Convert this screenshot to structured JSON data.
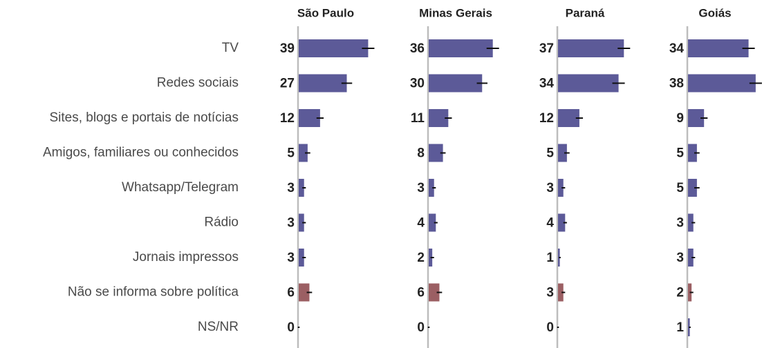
{
  "chart_data": {
    "type": "bar",
    "orientation": "horizontal",
    "categories": [
      "TV",
      "Redes sociais",
      "Sites, blogs e portais de notícias",
      "Amigos, familiares ou conhecidos",
      "Whatsapp/Telegram",
      "Rádio",
      "Jornais impressos",
      "Não se informa sobre política",
      "NS/NR"
    ],
    "colors": [
      "#5c5a98",
      "#5c5a98",
      "#5c5a98",
      "#5c5a98",
      "#5c5a98",
      "#5c5a98",
      "#5c5a98",
      "#9b5f63",
      "#5c5a98"
    ],
    "xlim": [
      0,
      40
    ],
    "series": [
      {
        "name": "São Paulo",
        "values": [
          39,
          27,
          12,
          5,
          3,
          3,
          3,
          6,
          0
        ],
        "errors": [
          3.5,
          3,
          2,
          1.5,
          1,
          1,
          1,
          1.5,
          0.5
        ]
      },
      {
        "name": "Minas Gerais",
        "values": [
          36,
          30,
          11,
          8,
          3,
          4,
          2,
          6,
          0
        ],
        "errors": [
          3.5,
          3,
          2,
          1.5,
          1,
          1,
          1,
          1.5,
          0.5
        ]
      },
      {
        "name": "Paraná",
        "values": [
          37,
          34,
          12,
          5,
          3,
          4,
          1,
          3,
          0
        ],
        "errors": [
          3.5,
          3.5,
          2,
          1.5,
          1,
          1,
          0.5,
          1,
          0.5
        ]
      },
      {
        "name": "Goiás",
        "values": [
          34,
          38,
          9,
          5,
          5,
          3,
          3,
          2,
          1
        ],
        "errors": [
          3.5,
          3.5,
          2,
          1.5,
          1.5,
          1,
          1,
          1,
          0.5
        ]
      }
    ]
  }
}
